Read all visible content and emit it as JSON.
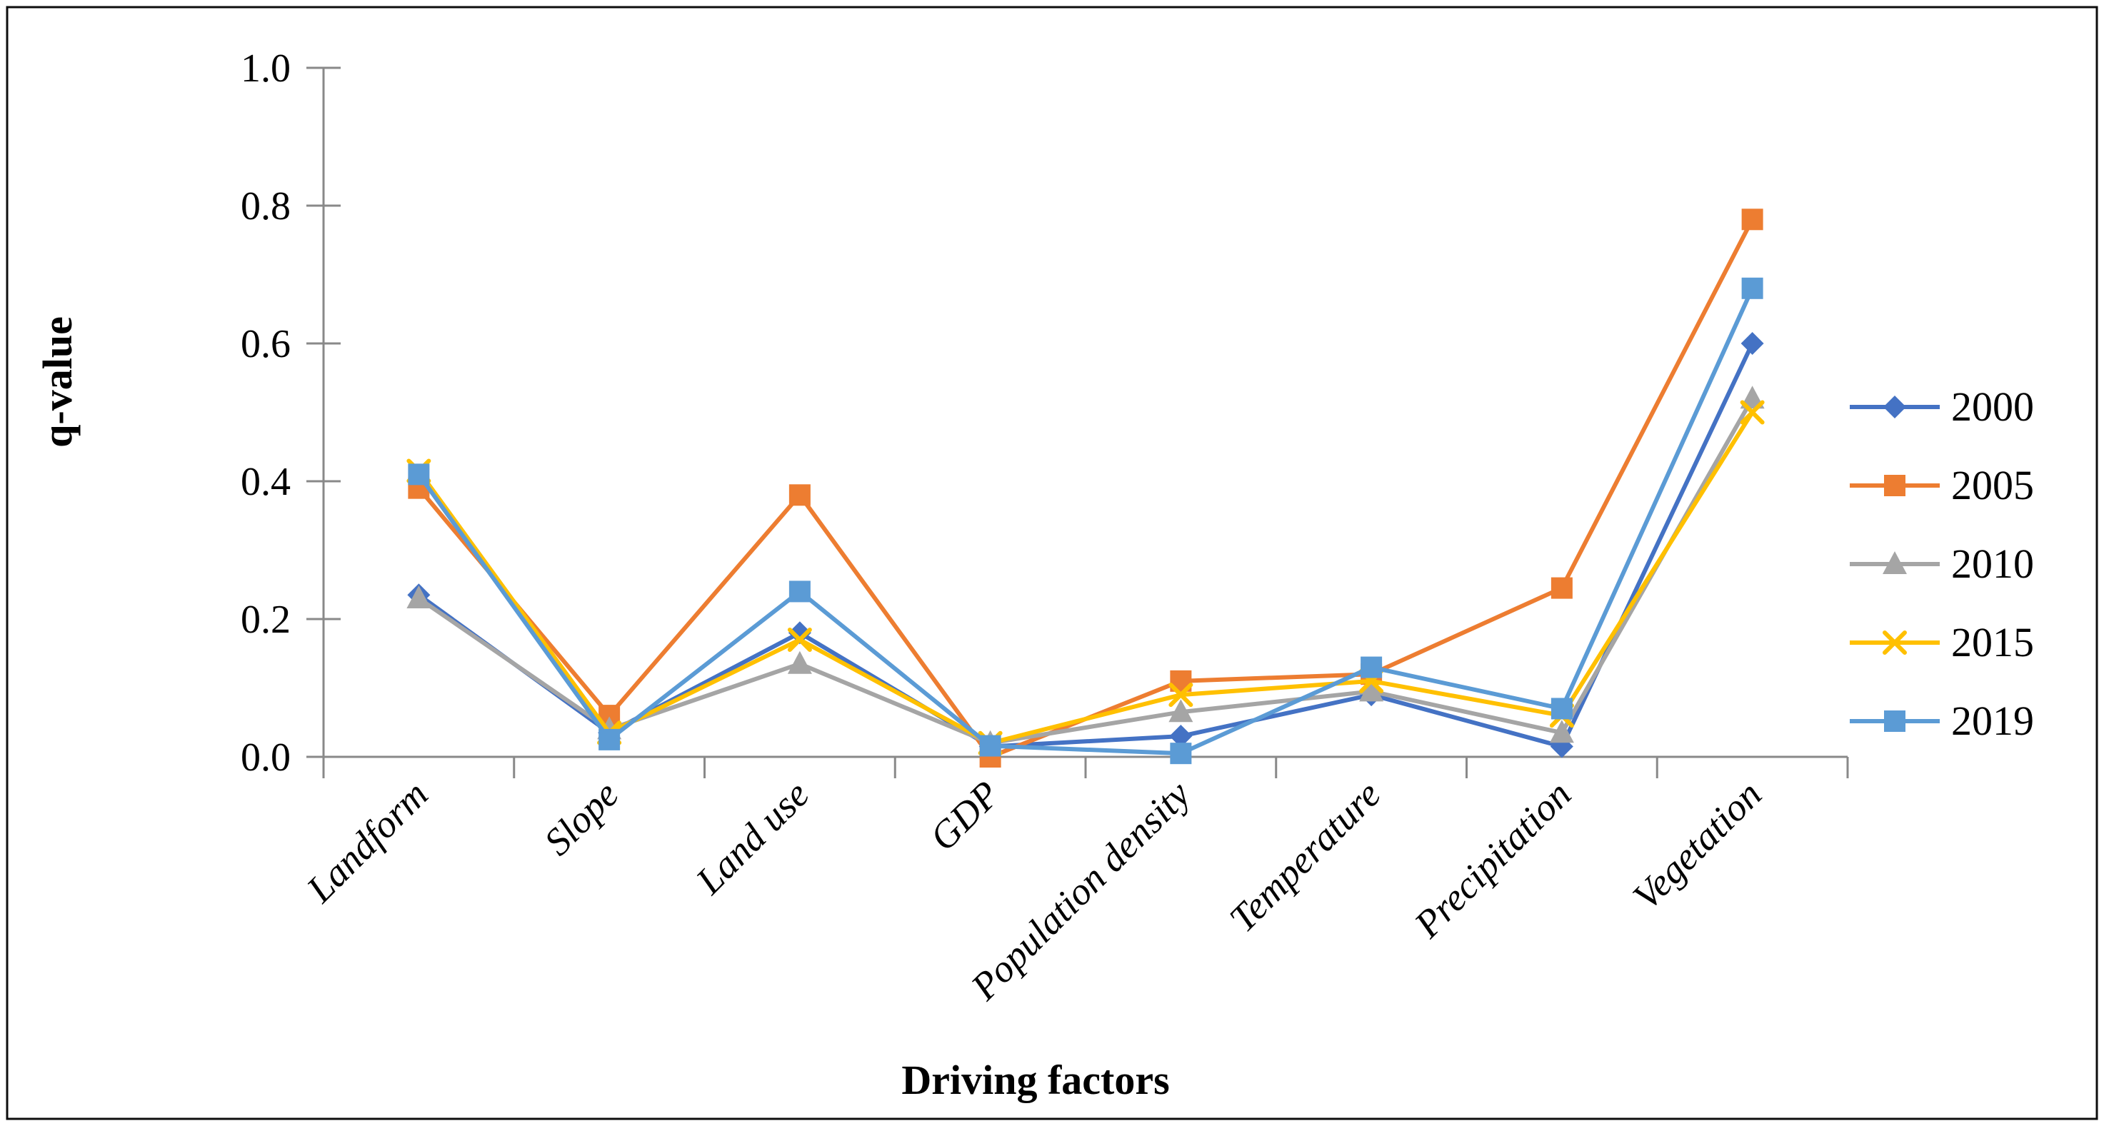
{
  "figure": {
    "background": "#ffffff",
    "border_color": "#0d0d0d"
  },
  "chart_data": {
    "type": "line",
    "title": "",
    "xlabel": "Driving factors",
    "ylabel": "q-value",
    "categories": [
      "Landform",
      "Slope",
      "Land use",
      "GDP",
      "Population density",
      "Temperature",
      "Precipitation",
      "Vegetation"
    ],
    "series": [
      {
        "name": "2000",
        "color": "#4472C4",
        "marker": "diamond",
        "values": [
          0.235,
          0.035,
          0.18,
          0.015,
          0.03,
          0.09,
          0.015,
          0.6
        ]
      },
      {
        "name": "2005",
        "color": "#ED7D31",
        "marker": "square",
        "values": [
          0.39,
          0.06,
          0.38,
          0.0,
          0.11,
          0.12,
          0.245,
          0.78
        ]
      },
      {
        "name": "2010",
        "color": "#A5A5A5",
        "marker": "triangle",
        "values": [
          0.23,
          0.04,
          0.135,
          0.02,
          0.065,
          0.095,
          0.035,
          0.52
        ]
      },
      {
        "name": "2015",
        "color": "#FFC000",
        "marker": "x",
        "values": [
          0.415,
          0.035,
          0.17,
          0.02,
          0.09,
          0.11,
          0.06,
          0.5
        ]
      },
      {
        "name": "2019",
        "color": "#5B9BD5",
        "marker": "square",
        "values": [
          0.41,
          0.025,
          0.24,
          0.016,
          0.005,
          0.13,
          0.07,
          0.68
        ]
      }
    ],
    "ylim": [
      0.0,
      1.0
    ],
    "yticks": [
      0.0,
      0.2,
      0.4,
      0.6,
      0.8,
      1.0
    ],
    "ytick_labels": [
      "0.0",
      "0.2",
      "0.4",
      "0.6",
      "0.8",
      "1.0"
    ],
    "grid": false,
    "legend_position": "right",
    "axis_color": "#898989"
  }
}
